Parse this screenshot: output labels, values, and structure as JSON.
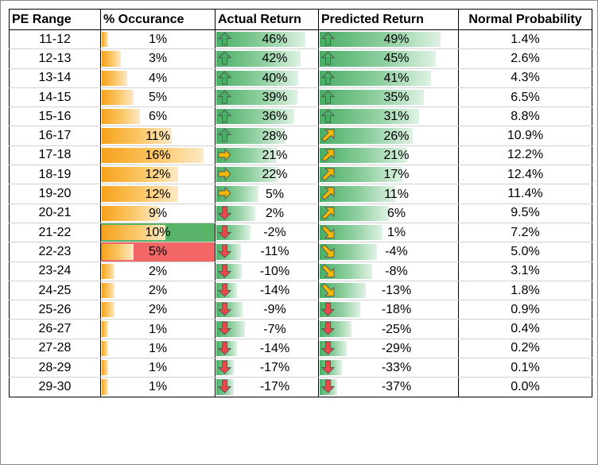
{
  "headers": [
    "PE Range",
    "% Occurance",
    "Actual Return",
    "Predicted Return",
    "Normal Probability"
  ],
  "rows": [
    {
      "pe": "11-12",
      "occ": "1%",
      "occ_v": 1,
      "act": "46%",
      "act_v": 46,
      "act_icon": "up-arrow-icon",
      "pred": "49%",
      "pred_v": 49,
      "pred_icon": "up-arrow-icon",
      "prob": "1.4%"
    },
    {
      "pe": "12-13",
      "occ": "3%",
      "occ_v": 3,
      "act": "42%",
      "act_v": 42,
      "act_icon": "up-arrow-icon",
      "pred": "45%",
      "pred_v": 45,
      "pred_icon": "up-arrow-icon",
      "prob": "2.6%"
    },
    {
      "pe": "13-14",
      "occ": "4%",
      "occ_v": 4,
      "act": "40%",
      "act_v": 40,
      "act_icon": "up-arrow-icon",
      "pred": "41%",
      "pred_v": 41,
      "pred_icon": "up-arrow-icon",
      "prob": "4.3%"
    },
    {
      "pe": "14-15",
      "occ": "5%",
      "occ_v": 5,
      "act": "39%",
      "act_v": 39,
      "act_icon": "up-arrow-icon",
      "pred": "35%",
      "pred_v": 35,
      "pred_icon": "up-arrow-icon",
      "prob": "6.5%"
    },
    {
      "pe": "15-16",
      "occ": "6%",
      "occ_v": 6,
      "act": "36%",
      "act_v": 36,
      "act_icon": "up-arrow-icon",
      "pred": "31%",
      "pred_v": 31,
      "pred_icon": "up-arrow-icon",
      "prob": "8.8%"
    },
    {
      "pe": "16-17",
      "occ": "11%",
      "occ_v": 11,
      "act": "28%",
      "act_v": 28,
      "act_icon": "up-arrow-icon",
      "pred": "26%",
      "pred_v": 26,
      "pred_icon": "up-right-arrow-icon",
      "prob": "10.9%"
    },
    {
      "pe": "17-18",
      "occ": "16%",
      "occ_v": 16,
      "act": "21%",
      "act_v": 21,
      "act_icon": "right-arrow-icon",
      "pred": "21%",
      "pred_v": 21,
      "pred_icon": "up-right-arrow-icon",
      "prob": "12.2%"
    },
    {
      "pe": "18-19",
      "occ": "12%",
      "occ_v": 12,
      "act": "22%",
      "act_v": 22,
      "act_icon": "right-arrow-icon",
      "pred": "17%",
      "pred_v": 17,
      "pred_icon": "up-right-arrow-icon",
      "prob": "12.4%"
    },
    {
      "pe": "19-20",
      "occ": "12%",
      "occ_v": 12,
      "act": "5%",
      "act_v": 5,
      "act_icon": "right-arrow-icon",
      "pred": "11%",
      "pred_v": 11,
      "pred_icon": "up-right-arrow-icon",
      "prob": "11.4%"
    },
    {
      "pe": "20-21",
      "occ": "9%",
      "occ_v": 9,
      "act": "2%",
      "act_v": 2,
      "act_icon": "down-arrow-icon",
      "pred": "6%",
      "pred_v": 6,
      "pred_icon": "up-right-arrow-icon",
      "prob": "9.5%"
    },
    {
      "pe": "21-22",
      "occ": "10%",
      "occ_v": 10,
      "act": "-2%",
      "act_v": -2,
      "act_icon": "down-arrow-icon",
      "pred": "1%",
      "pred_v": 1,
      "pred_icon": "down-right-arrow-icon",
      "prob": "7.2%",
      "highlight": "green"
    },
    {
      "pe": "22-23",
      "occ": "5%",
      "occ_v": 5,
      "act": "-11%",
      "act_v": -11,
      "act_icon": "down-arrow-icon",
      "pred": "-4%",
      "pred_v": -4,
      "pred_icon": "down-right-arrow-icon",
      "prob": "5.0%",
      "highlight": "red"
    },
    {
      "pe": "23-24",
      "occ": "2%",
      "occ_v": 2,
      "act": "-10%",
      "act_v": -10,
      "act_icon": "down-arrow-icon",
      "pred": "-8%",
      "pred_v": -8,
      "pred_icon": "down-right-arrow-icon",
      "prob": "3.1%"
    },
    {
      "pe": "24-25",
      "occ": "2%",
      "occ_v": 2,
      "act": "-14%",
      "act_v": -14,
      "act_icon": "down-arrow-icon",
      "pred": "-13%",
      "pred_v": -13,
      "pred_icon": "down-right-arrow-icon",
      "prob": "1.8%"
    },
    {
      "pe": "25-26",
      "occ": "2%",
      "occ_v": 2,
      "act": "-9%",
      "act_v": -9,
      "act_icon": "down-arrow-icon",
      "pred": "-18%",
      "pred_v": -18,
      "pred_icon": "down-arrow-icon",
      "prob": "0.9%"
    },
    {
      "pe": "26-27",
      "occ": "1%",
      "occ_v": 1,
      "act": "-7%",
      "act_v": -7,
      "act_icon": "down-arrow-icon",
      "pred": "-25%",
      "pred_v": -25,
      "pred_icon": "down-arrow-icon",
      "prob": "0.4%"
    },
    {
      "pe": "27-28",
      "occ": "1%",
      "occ_v": 1,
      "act": "-14%",
      "act_v": -14,
      "act_icon": "down-arrow-icon",
      "pred": "-29%",
      "pred_v": -29,
      "pred_icon": "down-arrow-icon",
      "prob": "0.2%"
    },
    {
      "pe": "28-29",
      "occ": "1%",
      "occ_v": 1,
      "act": "-17%",
      "act_v": -17,
      "act_icon": "down-arrow-icon",
      "pred": "-33%",
      "pred_v": -33,
      "pred_icon": "down-arrow-icon",
      "prob": "0.1%"
    },
    {
      "pe": "29-30",
      "occ": "1%",
      "occ_v": 1,
      "act": "-17%",
      "act_v": -17,
      "act_icon": "down-arrow-icon",
      "pred": "-37%",
      "pred_v": -37,
      "pred_icon": "down-arrow-icon",
      "prob": "0.0%"
    }
  ],
  "colors": {
    "bar_orange": "#f7a21b",
    "bar_green": "#4aae65",
    "highlight_green": "#59b46a",
    "highlight_red": "#f26665",
    "icon_up": "#4aae65",
    "icon_right": "#f5b800",
    "icon_down": "#e84a4a"
  }
}
